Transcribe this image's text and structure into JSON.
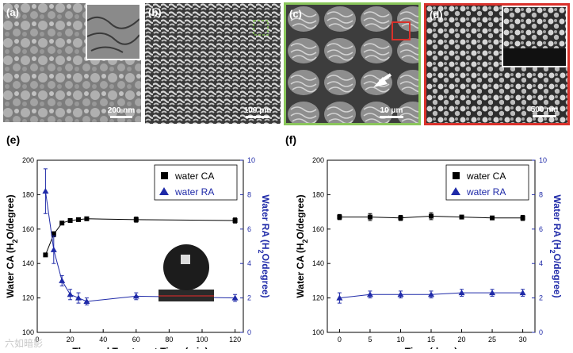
{
  "images": [
    {
      "label": "(a)",
      "scale": "200 nm",
      "frame": "#dddddd"
    },
    {
      "label": "(b)",
      "scale": "100 μm",
      "frame": "#dddddd"
    },
    {
      "label": "(c)",
      "scale": "10 μm",
      "frame": "#8ac65b"
    },
    {
      "label": "(d)",
      "scale": "500 nm",
      "frame": "#d9312b"
    }
  ],
  "watermark": "六如暗影",
  "chart_data": [
    {
      "type": "line",
      "panel_label": "(e)",
      "xlabel": "Thermal Treatment Time (min)",
      "ylabel_left": "Water CA (H2O/degree)",
      "ylabel_right": "Water RA (H2O/degree)",
      "xlim": [
        0,
        125
      ],
      "ylim_left": [
        100,
        200
      ],
      "ylim_right": [
        0,
        10
      ],
      "x_ticks": [
        0,
        20,
        40,
        60,
        80,
        100,
        120
      ],
      "y_left_ticks": [
        100,
        120,
        140,
        160,
        180,
        200
      ],
      "y_right_ticks": [
        0,
        2,
        4,
        6,
        8,
        10
      ],
      "legend_position": "top-right",
      "grid": false,
      "series": [
        {
          "name": "water CA",
          "axis": "left",
          "color": "#000000",
          "marker": "square",
          "x": [
            5,
            10,
            15,
            20,
            25,
            30,
            60,
            120
          ],
          "y": [
            145,
            157,
            163.5,
            165,
            165.5,
            166,
            165.5,
            165
          ],
          "err": [
            1,
            1.5,
            1,
            1,
            1,
            1,
            1.5,
            1.5
          ]
        },
        {
          "name": "water RA",
          "axis": "right",
          "color": "#1f2aa8",
          "marker": "triangle",
          "x": [
            5,
            10,
            15,
            20,
            25,
            30,
            60,
            120
          ],
          "y": [
            8.2,
            4.8,
            3.0,
            2.2,
            2.0,
            1.8,
            2.1,
            2.0
          ],
          "err": [
            1.3,
            0.8,
            0.3,
            0.3,
            0.3,
            0.2,
            0.2,
            0.2
          ]
        }
      ]
    },
    {
      "type": "line",
      "panel_label": "(f)",
      "xlabel": "Time (days)",
      "ylabel_left": "Water CA (H2O/degree)",
      "ylabel_right": "Water RA (H2O/degree)",
      "xlim": [
        -2,
        32
      ],
      "ylim_left": [
        100,
        200
      ],
      "ylim_right": [
        0,
        10
      ],
      "x_ticks": [
        0,
        5,
        10,
        15,
        20,
        25,
        30
      ],
      "y_left_ticks": [
        100,
        120,
        140,
        160,
        180,
        200
      ],
      "y_right_ticks": [
        0,
        2,
        4,
        6,
        8,
        10
      ],
      "legend_position": "top-right",
      "grid": false,
      "series": [
        {
          "name": "water CA",
          "axis": "left",
          "color": "#000000",
          "marker": "square",
          "x": [
            0,
            5,
            10,
            15,
            20,
            25,
            30
          ],
          "y": [
            167,
            167,
            166.5,
            167.5,
            167,
            166.5,
            166.5
          ],
          "err": [
            1.5,
            2,
            1.5,
            2,
            1,
            1,
            1.5
          ]
        },
        {
          "name": "water RA",
          "axis": "right",
          "color": "#1f2aa8",
          "marker": "triangle",
          "x": [
            0,
            5,
            10,
            15,
            20,
            25,
            30
          ],
          "y": [
            2.0,
            2.2,
            2.2,
            2.2,
            2.3,
            2.3,
            2.3
          ],
          "err": [
            0.3,
            0.2,
            0.2,
            0.2,
            0.2,
            0.2,
            0.2
          ]
        }
      ]
    }
  ]
}
